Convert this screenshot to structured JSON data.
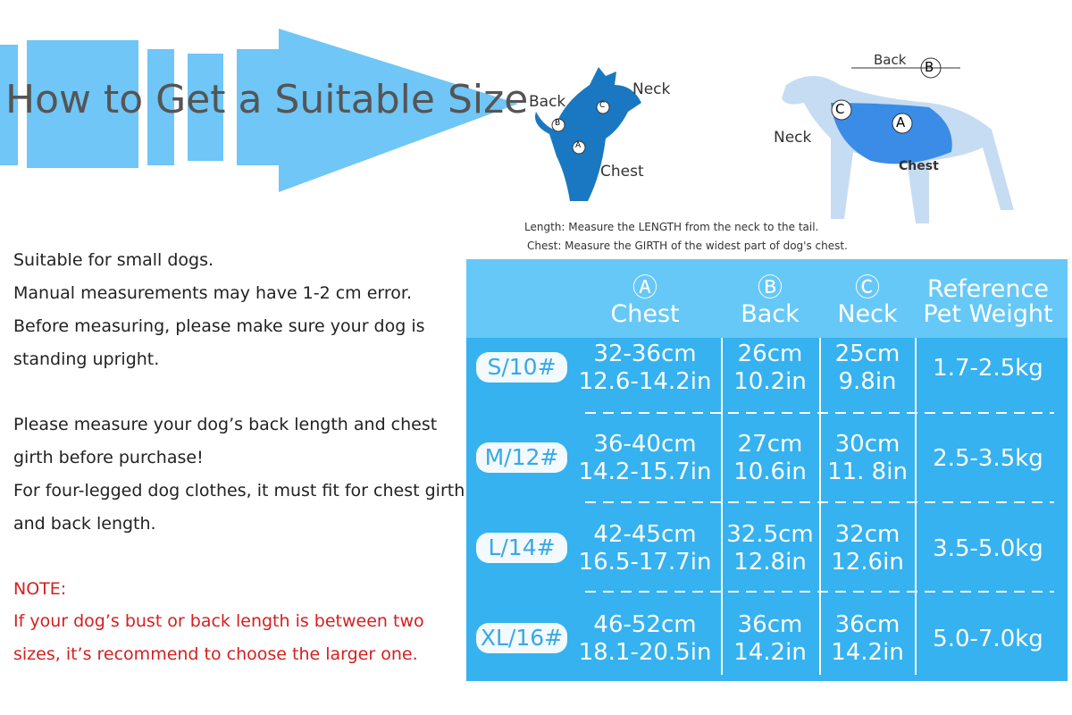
{
  "header": {
    "title": "How to Get a Suitable Size"
  },
  "diagram": {
    "cat": {
      "back": "Back",
      "neck": "Neck",
      "chest": "Chest",
      "a": "A",
      "b": "B",
      "c": "C"
    },
    "dog": {
      "back": "Back",
      "neck": "Neck",
      "chest": "Chest",
      "a": "A",
      "b": "B",
      "c": "C"
    },
    "notes": [
      "Length: Measure the LENGTH from the neck to the tail.",
      "Chest: Measure the GIRTH of the widest part of dog's chest."
    ]
  },
  "intro": {
    "lines": [
      "Suitable for small dogs.",
      "Manual measurements may have 1-2 cm error.",
      "Before measuring, please make sure your dog is",
      "standing upright.",
      "Please measure your dog’s back length and chest",
      "girth before purchase!",
      "For four-legged dog clothes, it must fit for chest girth",
      "and back length."
    ]
  },
  "note": {
    "title": "NOTE:",
    "lines": [
      "If your dog’s bust or back length is between two",
      "sizes, it’s recommend to choose the larger one."
    ]
  },
  "table": {
    "headers": [
      {
        "symbol": "Ⓐ",
        "label": "Chest"
      },
      {
        "symbol": "Ⓑ",
        "label": "Back"
      },
      {
        "symbol": "Ⓒ",
        "label": "Neck"
      },
      {
        "lines": [
          "Reference",
          "Pet Weight"
        ]
      }
    ],
    "rows": [
      {
        "size": "S/10#",
        "chest": [
          "32-36cm",
          "12.6-14.2in"
        ],
        "back": [
          "26cm",
          "10.2in"
        ],
        "neck": [
          "25cm",
          "9.8in"
        ],
        "weight": "1.7-2.5kg"
      },
      {
        "size": "M/12#",
        "chest": [
          "36-40cm",
          "14.2-15.7in"
        ],
        "back": [
          "27cm",
          "10.6in"
        ],
        "neck": [
          "30cm",
          "11. 8in"
        ],
        "weight": "2.5-3.5kg"
      },
      {
        "size": "L/14#",
        "chest": [
          "42-45cm",
          "16.5-17.7in"
        ],
        "back": [
          "32.5cm",
          "12.8in"
        ],
        "neck": [
          "32cm",
          "12.6in"
        ],
        "weight": "3.5-5.0kg"
      },
      {
        "size": "XL/16#",
        "chest": [
          "46-52cm",
          "18.1-20.5in"
        ],
        "back": [
          "36cm",
          "14.2in"
        ],
        "neck": [
          "36cm",
          "14.2in"
        ],
        "weight": "5.0-7.0kg"
      }
    ]
  }
}
